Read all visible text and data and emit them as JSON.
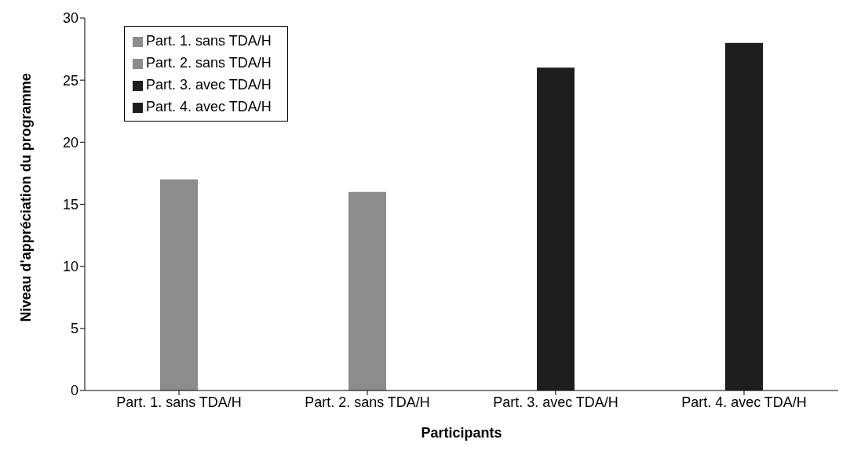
{
  "chart_data": {
    "type": "bar",
    "xlabel": "Participants",
    "ylabel": "Niveau d'appréciation du programme",
    "stacked": true,
    "categories": [
      "Part. 1. sans TDA/H",
      "Part. 2. sans TDA/H",
      "Part. 3. avec TDA/H",
      "Part. 4. avec TDA/H"
    ],
    "series": [
      {
        "name": "Part. 1. sans TDA/H",
        "color": "#8c8c8c",
        "values": [
          17,
          null,
          null,
          null
        ]
      },
      {
        "name": "Part. 2. sans TDA/H",
        "color": "#8c8c8c",
        "values": [
          null,
          16,
          null,
          null
        ]
      },
      {
        "name": "Part. 3. avec TDA/H",
        "color": "#1e1e1e",
        "values": [
          null,
          null,
          26,
          null
        ]
      },
      {
        "name": "Part. 4. avec TDA/H",
        "color": "#1e1e1e",
        "values": [
          null,
          null,
          null,
          28
        ]
      }
    ],
    "ylim": [
      0,
      30
    ],
    "yticks": [
      0,
      5,
      10,
      15,
      20,
      25,
      30
    ],
    "grid": false,
    "legend": "top left"
  }
}
